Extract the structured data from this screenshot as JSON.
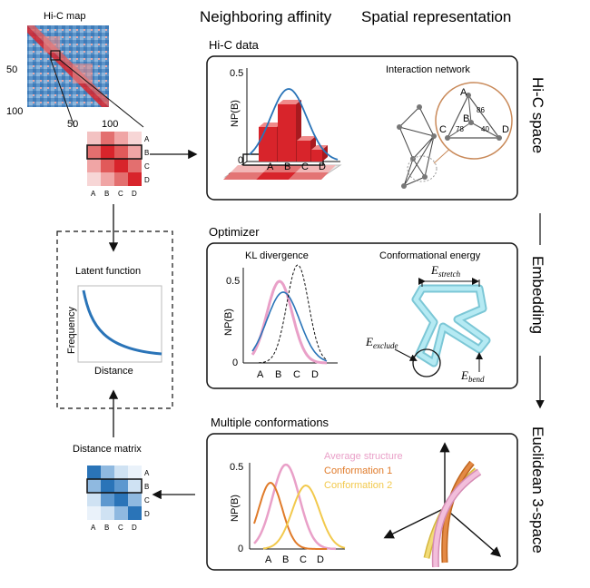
{
  "headers": {
    "neighboring": "Neighboring affinity",
    "spatial": "Spatial representation"
  },
  "hic_map": {
    "title": "Hi-C map",
    "tick_50_y": "50",
    "tick_100_y": "100",
    "tick_50_x": "50",
    "tick_100_x": "100",
    "zoom_labels_col": [
      "A",
      "B",
      "C",
      "D"
    ],
    "zoom_labels_row": [
      "A",
      "B",
      "C",
      "D"
    ]
  },
  "panels": {
    "hic_data": {
      "title": "Hi-C data",
      "ylabel": "NP(B)",
      "yticks": [
        "0.5",
        "0"
      ],
      "categories": [
        "A",
        "B",
        "C",
        "D"
      ],
      "network_title": "Interaction network",
      "triangle_labels": [
        "A",
        "B",
        "C",
        "D"
      ],
      "edge_values": [
        "86",
        "78",
        "40"
      ]
    },
    "optimizer": {
      "title": "Optimizer",
      "kl_title": "KL divergence",
      "ylabel": "NP(B)",
      "yticks": [
        "0.5",
        "0"
      ],
      "categories": [
        "A",
        "B",
        "C",
        "D"
      ],
      "energy_title": "Conformational energy",
      "e_stretch": "E",
      "e_stretch_sub": "stretch",
      "e_exclude": "E",
      "e_exclude_sub": "exclude",
      "e_bend": "E",
      "e_bend_sub": "bend"
    },
    "multiple": {
      "title": "Multiple conformations",
      "ylabel": "NP(B)",
      "yticks": [
        "0.5",
        "0"
      ],
      "categories": [
        "A",
        "B",
        "C",
        "D"
      ],
      "legend": [
        "Average structure",
        "Conformation 1",
        "Conformation 2"
      ]
    }
  },
  "side_labels": {
    "hic_space": "Hi-C space",
    "embedding": "Embedding",
    "euclidean": "Euclidean 3-space"
  },
  "latent": {
    "title": "Latent function",
    "ylabel": "Frequency",
    "xlabel": "Distance"
  },
  "distance_matrix": {
    "title": "Distance matrix",
    "labels_col": [
      "A",
      "B",
      "C",
      "D"
    ],
    "labels_row": [
      "A",
      "B",
      "C",
      "D"
    ]
  },
  "colors": {
    "red": "#d8242b",
    "blue": "#2a74b8",
    "cyan": "#8fd9e6",
    "pink": "#e9a0c8",
    "orange": "#e07b2a",
    "yellow": "#f2c94c"
  }
}
